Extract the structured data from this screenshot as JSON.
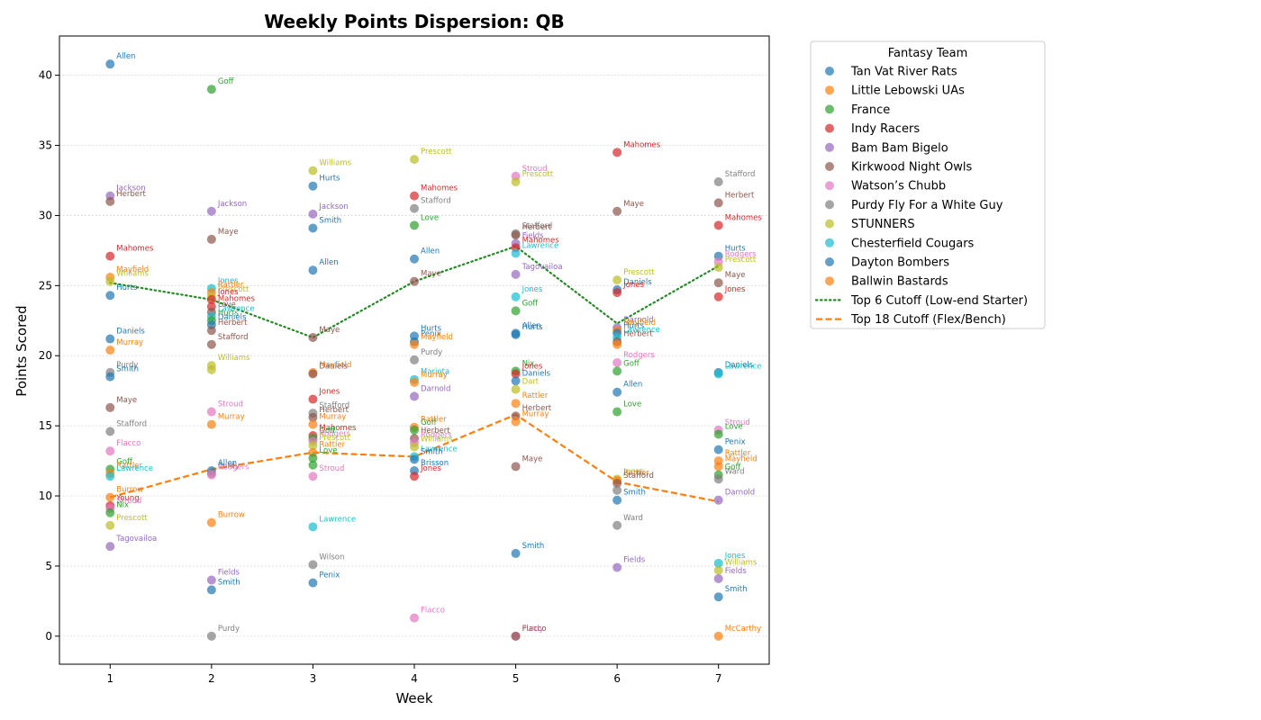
{
  "chart_data": {
    "type": "scatter",
    "title": "Weekly Points Dispersion: QB",
    "xlabel": "Week",
    "ylabel": "Points Scored",
    "xlim": [
      0.5,
      7.5
    ],
    "ylim": [
      -2,
      42.8
    ],
    "x_ticks": [
      1,
      2,
      3,
      4,
      5,
      6,
      7
    ],
    "y_ticks": [
      0,
      5,
      10,
      15,
      20,
      25,
      30,
      35,
      40
    ],
    "grid": "horizontal dotted",
    "legend_title": "Fantasy Team",
    "legend_position": "outside-right",
    "teams": [
      {
        "name": "Tan Vat River Rats",
        "color": "#1f77b4"
      },
      {
        "name": "Little Lebowski UAs",
        "color": "#ff7f0e"
      },
      {
        "name": "France",
        "color": "#2ca02c"
      },
      {
        "name": "Indy Racers",
        "color": "#d62728"
      },
      {
        "name": "Bam Bam Bigelo",
        "color": "#9467bd"
      },
      {
        "name": "Kirkwood Night Owls",
        "color": "#8c564b"
      },
      {
        "name": "Watson’s Chubb",
        "color": "#e377c2"
      },
      {
        "name": "Purdy Fly For a White Guy",
        "color": "#7f7f7f"
      },
      {
        "name": "STUNNERS",
        "color": "#bcbd22"
      },
      {
        "name": "Chesterfield Cougars",
        "color": "#17becf"
      },
      {
        "name": "Dayton Bombers",
        "color": "#1f77b4"
      },
      {
        "name": "Ballwin Bastards",
        "color": "#ff7f0e"
      }
    ],
    "lines": [
      {
        "name": "Top 6 Cutoff (Low-end Starter)",
        "color": "#228b22",
        "style": "dotted",
        "x": [
          1,
          2,
          3,
          4,
          5,
          6,
          7
        ],
        "y": [
          25.2,
          24.0,
          21.3,
          25.3,
          27.8,
          22.3,
          26.4
        ]
      },
      {
        "name": "Top 18 Cutoff (Flex/Bench)",
        "color": "#ff7f0e",
        "style": "dashed",
        "x": [
          1,
          2,
          3,
          4,
          5,
          6,
          7
        ],
        "y": [
          9.9,
          11.9,
          13.1,
          12.8,
          15.8,
          11.0,
          9.6
        ]
      }
    ],
    "points": [
      {
        "week": 1,
        "y": 40.8,
        "label": "Allen",
        "team": 0
      },
      {
        "week": 1,
        "y": 31.4,
        "label": "Jackson",
        "team": 4
      },
      {
        "week": 1,
        "y": 31.0,
        "label": "Herbert",
        "team": 5
      },
      {
        "week": 1,
        "y": 27.1,
        "label": "Mahomes",
        "team": 3
      },
      {
        "week": 1,
        "y": 25.6,
        "label": "Mayfield",
        "team": 1
      },
      {
        "week": 1,
        "y": 25.3,
        "label": "Williams",
        "team": 8
      },
      {
        "week": 1,
        "y": 24.3,
        "label": "Hurts",
        "team": 0
      },
      {
        "week": 1,
        "y": 21.2,
        "label": "Daniels",
        "team": 10
      },
      {
        "week": 1,
        "y": 20.4,
        "label": "Murray",
        "team": 1
      },
      {
        "week": 1,
        "y": 18.8,
        "label": "Purdy",
        "team": 7
      },
      {
        "week": 1,
        "y": 18.5,
        "label": "Smith",
        "team": 0
      },
      {
        "week": 1,
        "y": 16.3,
        "label": "Maye",
        "team": 5
      },
      {
        "week": 1,
        "y": 14.6,
        "label": "Stafford",
        "team": 7
      },
      {
        "week": 1,
        "y": 13.2,
        "label": "Flacco",
        "team": 6
      },
      {
        "week": 1,
        "y": 11.9,
        "label": "Goff",
        "team": 2
      },
      {
        "week": 1,
        "y": 11.6,
        "label": "Rattler",
        "team": 1
      },
      {
        "week": 1,
        "y": 11.4,
        "label": "Lawrence",
        "team": 9
      },
      {
        "week": 1,
        "y": 9.9,
        "label": "Burrow",
        "team": 1
      },
      {
        "week": 1,
        "y": 9.3,
        "label": "Young",
        "team": 3
      },
      {
        "week": 1,
        "y": 9.1,
        "label": "Stroud",
        "team": 6
      },
      {
        "week": 1,
        "y": 8.8,
        "label": "Nix",
        "team": 2
      },
      {
        "week": 1,
        "y": 7.9,
        "label": "Prescott",
        "team": 8
      },
      {
        "week": 1,
        "y": 6.4,
        "label": "Tagovailoa",
        "team": 4
      },
      {
        "week": 2,
        "y": 39.0,
        "label": "Goff",
        "team": 2
      },
      {
        "week": 2,
        "y": 30.3,
        "label": "Jackson",
        "team": 4
      },
      {
        "week": 2,
        "y": 28.3,
        "label": "Maye",
        "team": 5
      },
      {
        "week": 2,
        "y": 24.8,
        "label": "Jones",
        "team": 9
      },
      {
        "week": 2,
        "y": 24.5,
        "label": "Rattler",
        "team": 1
      },
      {
        "week": 2,
        "y": 24.2,
        "label": "Prescott",
        "team": 8
      },
      {
        "week": 2,
        "y": 24.0,
        "label": "Jones",
        "team": 3
      },
      {
        "week": 2,
        "y": 23.5,
        "label": "Mahomes",
        "team": 3
      },
      {
        "week": 2,
        "y": 23.1,
        "label": "Love",
        "team": 5
      },
      {
        "week": 2,
        "y": 22.8,
        "label": "Lawrence",
        "team": 9
      },
      {
        "week": 2,
        "y": 22.5,
        "label": "Hurts",
        "team": 2
      },
      {
        "week": 2,
        "y": 22.2,
        "label": "Daniels",
        "team": 0
      },
      {
        "week": 2,
        "y": 21.8,
        "label": "Herbert",
        "team": 5
      },
      {
        "week": 2,
        "y": 20.8,
        "label": "Stafford",
        "team": 5
      },
      {
        "week": 2,
        "y": 19.3,
        "label": "Williams",
        "team": 8
      },
      {
        "week": 2,
        "y": 19.0,
        "label": "",
        "team": 8
      },
      {
        "week": 2,
        "y": 16.0,
        "label": "Stroud",
        "team": 6
      },
      {
        "week": 2,
        "y": 15.1,
        "label": "Murray",
        "team": 1
      },
      {
        "week": 2,
        "y": 11.8,
        "label": "Allen",
        "team": 0
      },
      {
        "week": 2,
        "y": 11.6,
        "label": "Purdy",
        "team": 7
      },
      {
        "week": 2,
        "y": 11.5,
        "label": "Rodgers",
        "team": 6
      },
      {
        "week": 2,
        "y": 8.1,
        "label": "Burrow",
        "team": 1
      },
      {
        "week": 2,
        "y": 4.0,
        "label": "Fields",
        "team": 4
      },
      {
        "week": 2,
        "y": 3.3,
        "label": "Smith",
        "team": 0
      },
      {
        "week": 2,
        "y": 0.0,
        "label": "Purdy",
        "team": 7
      },
      {
        "week": 3,
        "y": 33.2,
        "label": "Williams",
        "team": 8
      },
      {
        "week": 3,
        "y": 32.1,
        "label": "Hurts",
        "team": 0
      },
      {
        "week": 3,
        "y": 30.1,
        "label": "Jackson",
        "team": 4
      },
      {
        "week": 3,
        "y": 29.1,
        "label": "Smith",
        "team": 10
      },
      {
        "week": 3,
        "y": 26.1,
        "label": "Allen",
        "team": 0
      },
      {
        "week": 3,
        "y": 21.3,
        "label": "Maye",
        "team": 5
      },
      {
        "week": 3,
        "y": 18.8,
        "label": "Mayfield",
        "team": 1
      },
      {
        "week": 3,
        "y": 18.7,
        "label": "Daniels",
        "team": 5
      },
      {
        "week": 3,
        "y": 16.9,
        "label": "Jones",
        "team": 3
      },
      {
        "week": 3,
        "y": 15.9,
        "label": "Stafford",
        "team": 7
      },
      {
        "week": 3,
        "y": 15.6,
        "label": "Herbert",
        "team": 5
      },
      {
        "week": 3,
        "y": 15.1,
        "label": "Murray",
        "team": 1
      },
      {
        "week": 3,
        "y": 14.3,
        "label": "Mahomes",
        "team": 3
      },
      {
        "week": 3,
        "y": 14.1,
        "label": "Goff",
        "team": 2
      },
      {
        "week": 3,
        "y": 13.9,
        "label": "Rodgers",
        "team": 6
      },
      {
        "week": 3,
        "y": 13.6,
        "label": "Prescott",
        "team": 8
      },
      {
        "week": 3,
        "y": 13.1,
        "label": "Rattler",
        "team": 1
      },
      {
        "week": 3,
        "y": 12.7,
        "label": "Love",
        "team": 2
      },
      {
        "week": 3,
        "y": 12.2,
        "label": "",
        "team": 2
      },
      {
        "week": 3,
        "y": 11.4,
        "label": "Stroud",
        "team": 6
      },
      {
        "week": 3,
        "y": 7.8,
        "label": "Lawrence",
        "team": 9
      },
      {
        "week": 3,
        "y": 5.1,
        "label": "Wilson",
        "team": 7
      },
      {
        "week": 3,
        "y": 3.8,
        "label": "Penix",
        "team": 0
      },
      {
        "week": 4,
        "y": 34.0,
        "label": "Prescott",
        "team": 8
      },
      {
        "week": 4,
        "y": 31.4,
        "label": "Mahomes",
        "team": 3
      },
      {
        "week": 4,
        "y": 30.5,
        "label": "Stafford",
        "team": 7
      },
      {
        "week": 4,
        "y": 29.3,
        "label": "Love",
        "team": 2
      },
      {
        "week": 4,
        "y": 26.9,
        "label": "Allen",
        "team": 0
      },
      {
        "week": 4,
        "y": 25.3,
        "label": "Maye",
        "team": 5
      },
      {
        "week": 4,
        "y": 21.4,
        "label": "Hurts",
        "team": 0
      },
      {
        "week": 4,
        "y": 21.0,
        "label": "Penix",
        "team": 10
      },
      {
        "week": 4,
        "y": 20.8,
        "label": "Mayfield",
        "team": 1
      },
      {
        "week": 4,
        "y": 19.7,
        "label": "Purdy",
        "team": 7
      },
      {
        "week": 4,
        "y": 18.3,
        "label": "Mariota",
        "team": 9
      },
      {
        "week": 4,
        "y": 18.1,
        "label": "Murray",
        "team": 1
      },
      {
        "week": 4,
        "y": 17.1,
        "label": "Darnold",
        "team": 4
      },
      {
        "week": 4,
        "y": 14.9,
        "label": "Rattler",
        "team": 1
      },
      {
        "week": 4,
        "y": 14.7,
        "label": "Goff",
        "team": 2
      },
      {
        "week": 4,
        "y": 14.1,
        "label": "Herbert",
        "team": 5
      },
      {
        "week": 4,
        "y": 13.8,
        "label": "Rodgers",
        "team": 6
      },
      {
        "week": 4,
        "y": 13.5,
        "label": "Williams",
        "team": 8
      },
      {
        "week": 4,
        "y": 12.8,
        "label": "Lawrence",
        "team": 9
      },
      {
        "week": 4,
        "y": 12.6,
        "label": "Smith",
        "team": 0
      },
      {
        "week": 4,
        "y": 11.8,
        "label": "Brisson",
        "team": 10
      },
      {
        "week": 4,
        "y": 11.4,
        "label": "Jones",
        "team": 3
      },
      {
        "week": 4,
        "y": 1.3,
        "label": "Flacco",
        "team": 6
      },
      {
        "week": 5,
        "y": 32.8,
        "label": "Stroud",
        "team": 6
      },
      {
        "week": 5,
        "y": 32.4,
        "label": "Prescott",
        "team": 8
      },
      {
        "week": 5,
        "y": 28.7,
        "label": "Stafford",
        "team": 7
      },
      {
        "week": 5,
        "y": 28.6,
        "label": "Herbert",
        "team": 5
      },
      {
        "week": 5,
        "y": 28.0,
        "label": "Fields",
        "team": 4
      },
      {
        "week": 5,
        "y": 27.7,
        "label": "Mahomes",
        "team": 3
      },
      {
        "week": 5,
        "y": 27.3,
        "label": "Lawrence",
        "team": 9
      },
      {
        "week": 5,
        "y": 25.8,
        "label": "Tagovailoa",
        "team": 4
      },
      {
        "week": 5,
        "y": 24.2,
        "label": "Jones",
        "team": 9
      },
      {
        "week": 5,
        "y": 23.2,
        "label": "Goff",
        "team": 2
      },
      {
        "week": 5,
        "y": 21.6,
        "label": "Allen",
        "team": 0
      },
      {
        "week": 5,
        "y": 21.5,
        "label": "Hurts",
        "team": 10
      },
      {
        "week": 5,
        "y": 18.9,
        "label": "Nix",
        "team": 2
      },
      {
        "week": 5,
        "y": 18.7,
        "label": "Jones",
        "team": 3
      },
      {
        "week": 5,
        "y": 18.2,
        "label": "Daniels",
        "team": 0
      },
      {
        "week": 5,
        "y": 17.6,
        "label": "Dart",
        "team": 8
      },
      {
        "week": 5,
        "y": 16.6,
        "label": "Rattler",
        "team": 1
      },
      {
        "week": 5,
        "y": 15.7,
        "label": "Herbert",
        "team": 5
      },
      {
        "week": 5,
        "y": 15.3,
        "label": "Murray",
        "team": 1
      },
      {
        "week": 5,
        "y": 12.1,
        "label": "Maye",
        "team": 5
      },
      {
        "week": 5,
        "y": 5.9,
        "label": "Smith",
        "team": 0
      },
      {
        "week": 5,
        "y": 0.0,
        "label": "Purdy",
        "team": 6
      },
      {
        "week": 5,
        "y": 0.0,
        "label": "Flacco",
        "team": 5
      },
      {
        "week": 6,
        "y": 34.5,
        "label": "Mahomes",
        "team": 3
      },
      {
        "week": 6,
        "y": 30.3,
        "label": "Maye",
        "team": 5
      },
      {
        "week": 6,
        "y": 25.4,
        "label": "Prescott",
        "team": 8
      },
      {
        "week": 6,
        "y": 24.7,
        "label": "Daniels",
        "team": 0
      },
      {
        "week": 6,
        "y": 24.5,
        "label": "Jones",
        "team": 3
      },
      {
        "week": 6,
        "y": 22.0,
        "label": "Darnold",
        "team": 4
      },
      {
        "week": 6,
        "y": 21.8,
        "label": "Mayfield",
        "team": 1
      },
      {
        "week": 6,
        "y": 21.6,
        "label": "Hurts",
        "team": 0
      },
      {
        "week": 6,
        "y": 21.3,
        "label": "Lawrence",
        "team": 9
      },
      {
        "week": 6,
        "y": 21.0,
        "label": "Herbert",
        "team": 5
      },
      {
        "week": 6,
        "y": 20.8,
        "label": "",
        "team": 1
      },
      {
        "week": 6,
        "y": 19.5,
        "label": "Rodgers",
        "team": 6
      },
      {
        "week": 6,
        "y": 18.9,
        "label": "Goff",
        "team": 2
      },
      {
        "week": 6,
        "y": 17.4,
        "label": "Allen",
        "team": 0
      },
      {
        "week": 6,
        "y": 16.0,
        "label": "Love",
        "team": 2
      },
      {
        "week": 6,
        "y": 11.2,
        "label": "Jones",
        "team": 8
      },
      {
        "week": 6,
        "y": 11.1,
        "label": "Rattler",
        "team": 1
      },
      {
        "week": 6,
        "y": 10.9,
        "label": "Stafford",
        "team": 5
      },
      {
        "week": 6,
        "y": 10.4,
        "label": "",
        "team": 7
      },
      {
        "week": 6,
        "y": 9.7,
        "label": "Smith",
        "team": 0
      },
      {
        "week": 6,
        "y": 7.9,
        "label": "Ward",
        "team": 7
      },
      {
        "week": 6,
        "y": 4.9,
        "label": "Fields",
        "team": 4
      },
      {
        "week": 7,
        "y": 32.4,
        "label": "Stafford",
        "team": 7
      },
      {
        "week": 7,
        "y": 30.9,
        "label": "Herbert",
        "team": 5
      },
      {
        "week": 7,
        "y": 29.3,
        "label": "Mahomes",
        "team": 3
      },
      {
        "week": 7,
        "y": 27.1,
        "label": "Hurts",
        "team": 0
      },
      {
        "week": 7,
        "y": 26.7,
        "label": "Rodgers",
        "team": 6
      },
      {
        "week": 7,
        "y": 26.3,
        "label": "Prescott",
        "team": 8
      },
      {
        "week": 7,
        "y": 25.2,
        "label": "Maye",
        "team": 5
      },
      {
        "week": 7,
        "y": 24.2,
        "label": "Jones",
        "team": 3
      },
      {
        "week": 7,
        "y": 18.8,
        "label": "Daniels",
        "team": 0
      },
      {
        "week": 7,
        "y": 18.7,
        "label": "Lawrence",
        "team": 9
      },
      {
        "week": 7,
        "y": 14.7,
        "label": "Stroud",
        "team": 6
      },
      {
        "week": 7,
        "y": 14.4,
        "label": "Love",
        "team": 2
      },
      {
        "week": 7,
        "y": 13.3,
        "label": "Penix",
        "team": 0
      },
      {
        "week": 7,
        "y": 12.5,
        "label": "Rattler",
        "team": 1
      },
      {
        "week": 7,
        "y": 12.1,
        "label": "Mayfield",
        "team": 1
      },
      {
        "week": 7,
        "y": 11.5,
        "label": "Goff",
        "team": 2
      },
      {
        "week": 7,
        "y": 11.2,
        "label": "Ward",
        "team": 7
      },
      {
        "week": 7,
        "y": 9.7,
        "label": "Darnold",
        "team": 4
      },
      {
        "week": 7,
        "y": 5.2,
        "label": "Jones",
        "team": 9
      },
      {
        "week": 7,
        "y": 4.7,
        "label": "Williams",
        "team": 8
      },
      {
        "week": 7,
        "y": 4.1,
        "label": "Fields",
        "team": 4
      },
      {
        "week": 7,
        "y": 2.8,
        "label": "Smith",
        "team": 0
      },
      {
        "week": 7,
        "y": 0.0,
        "label": "McCarthy",
        "team": 1
      }
    ]
  }
}
